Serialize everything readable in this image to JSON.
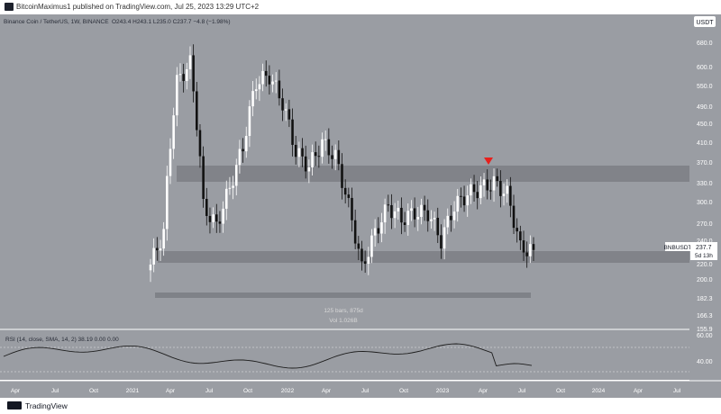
{
  "header": {
    "attribution": "BitcoinMaximus1 published on TradingView.com, Jul 25, 2023 13:29 UTC+2"
  },
  "chart": {
    "symbol_line": "Binance Coin / TetherUS, 1W, BINANCE",
    "ohlc_line": "O243.4  H243.1  L235.0  C237.7  −4.8 (−1.98%)",
    "currency": "USDT",
    "price_ticks": [
      "680.0",
      "600.0",
      "550.0",
      "490.0",
      "450.0",
      "410.0",
      "370.0",
      "330.0",
      "300.0",
      "270.0",
      "240.0",
      "220.0",
      "200.0",
      "182.3",
      "166.3",
      "155.9"
    ],
    "last_price_tag": {
      "symbol": "BNBUSDT",
      "price": "237.7",
      "countdown": "5d 13h"
    },
    "range_label": "125 bars, 875d",
    "range_vol": "Vol 1.026B",
    "rsi_label": "RSI (14, close, SMA, 14, 2)  38.19  0.00  0.00",
    "rsi_ticks": [
      "60.00",
      "40.00"
    ],
    "time_ticks": [
      "Apr",
      "Jul",
      "Oct",
      "2021",
      "Apr",
      "Jul",
      "Oct",
      "2022",
      "Apr",
      "Jul",
      "Oct",
      "2023",
      "Apr",
      "Jul",
      "Oct",
      "2024",
      "Apr",
      "Jul"
    ]
  },
  "footer": {
    "brand": "TradingView"
  },
  "chart_data": {
    "type": "candlestick",
    "title": "Binance Coin / TetherUS, 1W, BINANCE",
    "ylabel": "USDT",
    "y_scale": "log",
    "ylim": [
      155.9,
      720
    ],
    "horizontal_zones": [
      {
        "label": "resistance",
        "from": 335,
        "to": 358
      },
      {
        "label": "support",
        "from": 222,
        "to": 235
      },
      {
        "label": "measured-range",
        "from": 183,
        "to": 186
      }
    ],
    "marker": {
      "shape": "down-triangle",
      "color": "#ff0000",
      "date": "2023-04-01",
      "value": 375
    },
    "series": [
      {
        "name": "BNBUSDT",
        "x_dates": [
          "2021-02",
          "2021-03",
          "2021-04",
          "2021-05",
          "2021-06",
          "2021-07",
          "2021-08",
          "2021-09",
          "2021-10",
          "2021-11",
          "2021-12",
          "2022-01",
          "2022-02",
          "2022-03",
          "2022-04",
          "2022-05",
          "2022-06",
          "2022-07",
          "2022-08",
          "2022-09",
          "2022-10",
          "2022-11",
          "2022-12",
          "2023-01",
          "2023-02",
          "2023-03",
          "2023-04",
          "2023-05",
          "2023-06",
          "2023-07"
        ],
        "close": [
          220,
          260,
          580,
          640,
          300,
          270,
          330,
          410,
          580,
          600,
          520,
          400,
          370,
          420,
          390,
          300,
          215,
          260,
          300,
          280,
          290,
          290,
          250,
          300,
          320,
          330,
          340,
          320,
          240,
          237.7
        ]
      }
    ],
    "rsi": {
      "label": "RSI (14, close, SMA, 14, 2)",
      "last": 38.19,
      "levels": [
        60,
        40
      ]
    }
  }
}
